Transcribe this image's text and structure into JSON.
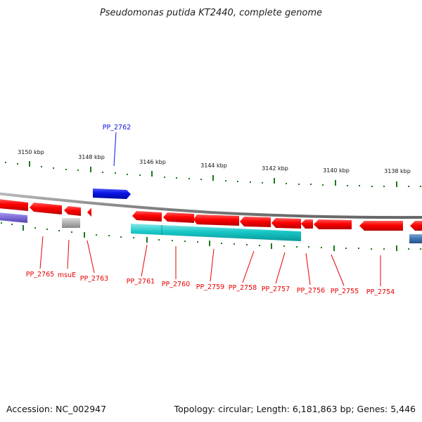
{
  "title": "Pseudomonas putida KT2440, complete genome",
  "footer": {
    "accession": "Accession: NC_002947",
    "topology": "Topology: circular; Length: 6,181,863 bp; Genes: 5,446"
  },
  "colors": {
    "forward_gene": "#0a14e6",
    "reverse_gene": "#e60000",
    "cds_teal": "#19c8c8",
    "backbone": "#888888",
    "tick": "#1a7a1a",
    "other_gray": "#aaaaaa",
    "purple": "#7b6bd6",
    "steel_blue": "#3f74b0"
  },
  "ticks": [
    "3150 kbp",
    "3148 kbp",
    "3146 kbp",
    "3144 kbp",
    "3142 kbp",
    "3140 kbp",
    "3138 kbp"
  ],
  "genes": [
    {
      "name": "PP_2762",
      "strand": "forward"
    },
    {
      "name": "PP_2765",
      "strand": "reverse"
    },
    {
      "name": "msuE",
      "strand": "reverse"
    },
    {
      "name": "PP_2763",
      "strand": "reverse"
    },
    {
      "name": "PP_2761",
      "strand": "reverse"
    },
    {
      "name": "PP_2760",
      "strand": "reverse"
    },
    {
      "name": "PP_2759",
      "strand": "reverse"
    },
    {
      "name": "PP_2758",
      "strand": "reverse"
    },
    {
      "name": "PP_2757",
      "strand": "reverse"
    },
    {
      "name": "PP_2756",
      "strand": "reverse"
    },
    {
      "name": "PP_2755",
      "strand": "reverse"
    },
    {
      "name": "PP_2754",
      "strand": "reverse"
    }
  ]
}
